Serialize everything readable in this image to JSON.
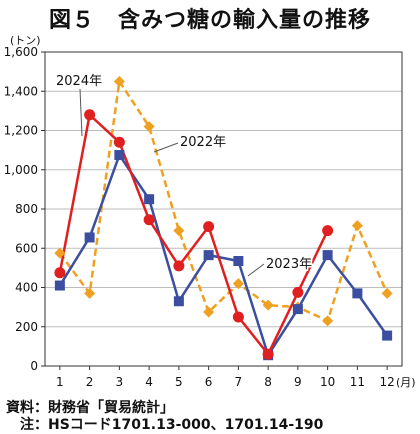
{
  "figure": {
    "title": "図５　含みつ糖の輸入量の推移",
    "source": "資料：財務省「貿易統計」",
    "note": "注：HSコード1701.13-000、1701.14-190"
  },
  "chart_data": {
    "type": "line",
    "title": "図５　含みつ糖の輸入量の推移",
    "y_unit": "(トン)",
    "x_unit": "(月)",
    "categories": [
      "1",
      "2",
      "3",
      "4",
      "5",
      "6",
      "7",
      "8",
      "9",
      "10",
      "11",
      "12"
    ],
    "ylim": [
      0,
      1600
    ],
    "yticks": [
      0,
      200,
      400,
      600,
      800,
      1000,
      1200,
      1400,
      1600
    ],
    "ytick_labels": [
      "0",
      "200",
      "400",
      "600",
      "800",
      "1,000",
      "1,200",
      "1,400",
      "1,600"
    ],
    "grid": true,
    "series": [
      {
        "name": "2022年",
        "color": "#f0a020",
        "dash": true,
        "marker": "diamond",
        "values": [
          575,
          370,
          1450,
          1220,
          690,
          275,
          420,
          310,
          300,
          230,
          715,
          370
        ]
      },
      {
        "name": "2023年",
        "color": "#3c4ea0",
        "dash": false,
        "marker": "square",
        "values": [
          410,
          655,
          1075,
          850,
          330,
          565,
          535,
          55,
          290,
          565,
          370,
          155
        ]
      },
      {
        "name": "2024年",
        "color": "#e02020",
        "dash": false,
        "marker": "circle",
        "values": [
          475,
          1280,
          1140,
          745,
          510,
          710,
          250,
          60,
          375,
          690,
          null,
          null
        ]
      }
    ]
  }
}
